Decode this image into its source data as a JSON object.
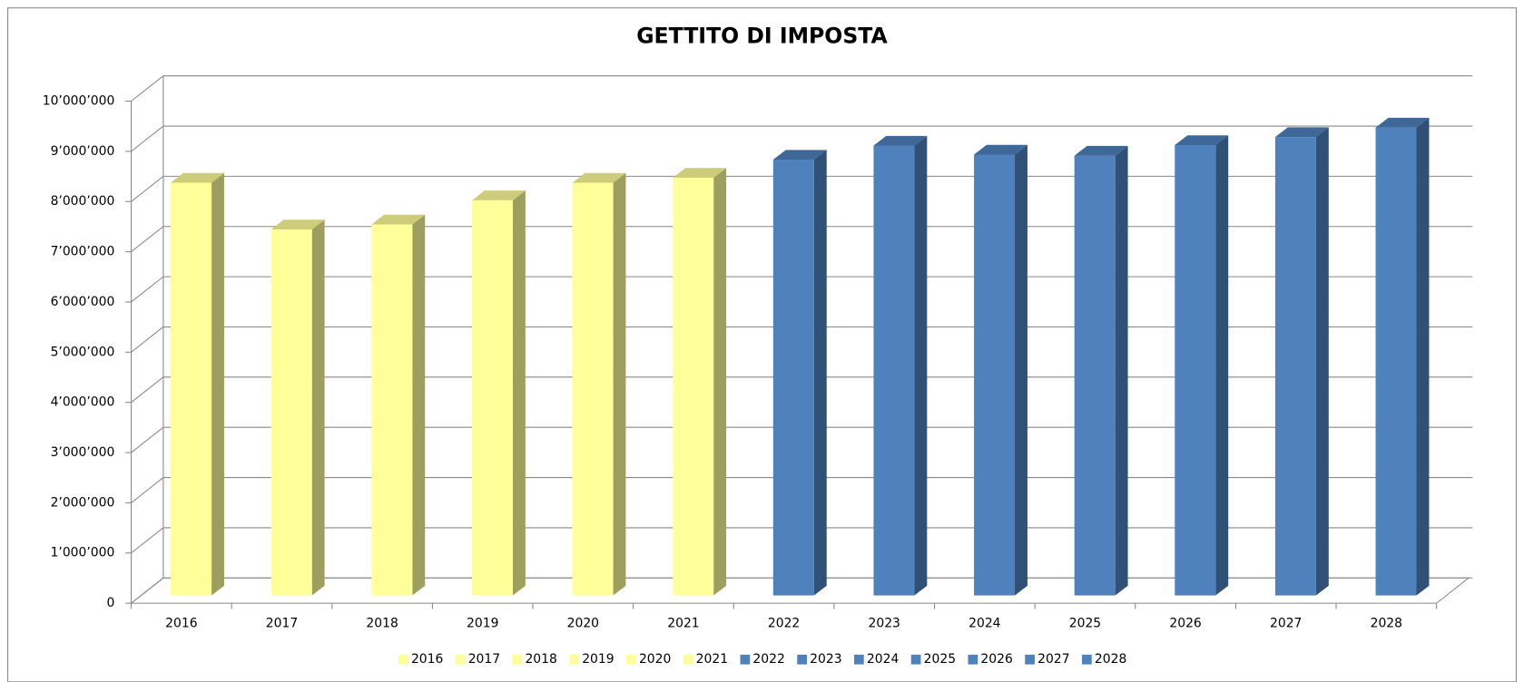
{
  "chart_data": {
    "type": "bar3d",
    "title": "GETTITO DI IMPOSTA",
    "categories": [
      "2016",
      "2017",
      "2018",
      "2019",
      "2020",
      "2021",
      "2022",
      "2023",
      "2024",
      "2025",
      "2026",
      "2027",
      "2028"
    ],
    "values": [
      8220000,
      7290000,
      7390000,
      7870000,
      8220000,
      8320000,
      8680000,
      8960000,
      8780000,
      8760000,
      8970000,
      9130000,
      9320000
    ],
    "colors": [
      "#ffff99",
      "#ffff99",
      "#ffff99",
      "#ffff99",
      "#ffff99",
      "#ffff99",
      "#4f81bd",
      "#4f81bd",
      "#4f81bd",
      "#4f81bd",
      "#4f81bd",
      "#4f81bd",
      "#4f81bd"
    ],
    "ylim": [
      0,
      10000000
    ],
    "yticks": [
      0,
      {
        "value": 1000000,
        "label": "1’000’000"
      },
      {
        "value": 2000000,
        "label": "2’000’000"
      },
      {
        "value": 3000000,
        "label": "3’000’000"
      },
      {
        "value": 4000000,
        "label": "4’000’000"
      },
      {
        "value": 5000000,
        "label": "5’000’000"
      },
      {
        "value": 6000000,
        "label": "6’000’000"
      },
      {
        "value": 7000000,
        "label": "7’000’000"
      },
      {
        "value": 8000000,
        "label": "8’000’000"
      },
      {
        "value": 9000000,
        "label": "9’000’000"
      },
      {
        "value": 10000000,
        "label": "10’000’000"
      }
    ],
    "grid": true,
    "legend": "bottom"
  }
}
